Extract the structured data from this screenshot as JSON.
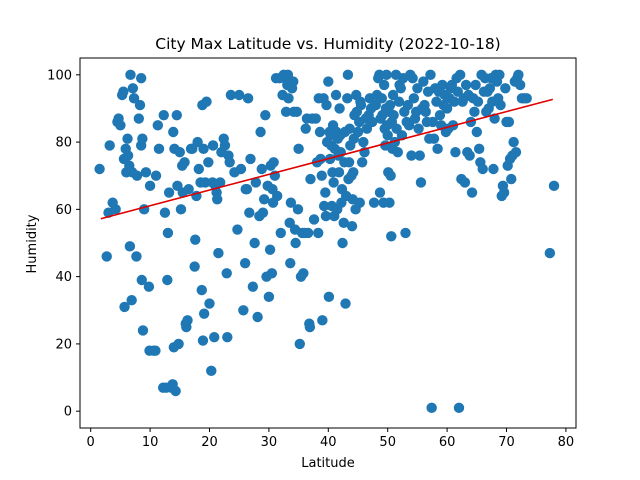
{
  "chart_data": {
    "type": "scatter",
    "title": "City Max Latitude vs. Humidity (2022-10-18)",
    "xlabel": "Latitude",
    "ylabel": "Humidity",
    "xlim": [
      -1.8,
      81.7
    ],
    "ylim": [
      -5,
      105
    ],
    "xticks": [
      "0",
      "10",
      "20",
      "30",
      "40",
      "50",
      "60",
      "70",
      "80"
    ],
    "yticks": [
      "0",
      "20",
      "40",
      "60",
      "80",
      "100"
    ],
    "grid": false,
    "colors": {
      "points": "#1f77b4",
      "regression": "#e00000"
    },
    "regression": {
      "x": [
        1.7,
        77.8
      ],
      "y": [
        57.2,
        92.7
      ]
    },
    "points": [
      [
        1.5,
        72
      ],
      [
        2.7,
        46
      ],
      [
        3.0,
        59
      ],
      [
        3.2,
        79
      ],
      [
        3.7,
        62
      ],
      [
        4.2,
        60
      ],
      [
        4.5,
        86
      ],
      [
        4.7,
        87
      ],
      [
        5.0,
        85
      ],
      [
        5.3,
        94
      ],
      [
        5.5,
        95
      ],
      [
        5.6,
        75
      ],
      [
        5.7,
        31
      ],
      [
        5.9,
        78
      ],
      [
        6.0,
        71
      ],
      [
        6.2,
        81
      ],
      [
        6.3,
        76
      ],
      [
        6.5,
        73
      ],
      [
        6.6,
        49
      ],
      [
        6.7,
        100
      ],
      [
        6.9,
        33
      ],
      [
        7.0,
        71
      ],
      [
        7.1,
        96
      ],
      [
        7.3,
        93
      ],
      [
        7.7,
        46
      ],
      [
        7.8,
        70
      ],
      [
        8.1,
        87
      ],
      [
        8.3,
        91
      ],
      [
        8.5,
        99
      ],
      [
        8.5,
        79
      ],
      [
        8.6,
        39
      ],
      [
        8.7,
        81
      ],
      [
        8.8,
        24
      ],
      [
        9.0,
        60
      ],
      [
        9.3,
        71
      ],
      [
        9.8,
        37
      ],
      [
        9.9,
        18
      ],
      [
        10.0,
        67
      ],
      [
        10.6,
        18
      ],
      [
        10.9,
        18
      ],
      [
        11.0,
        70
      ],
      [
        11.3,
        85
      ],
      [
        11.5,
        78
      ],
      [
        12.2,
        7
      ],
      [
        12.3,
        88
      ],
      [
        12.5,
        59
      ],
      [
        12.7,
        7
      ],
      [
        12.9,
        39
      ],
      [
        13.0,
        53
      ],
      [
        13.2,
        65
      ],
      [
        13.6,
        7
      ],
      [
        13.8,
        8
      ],
      [
        13.9,
        83
      ],
      [
        14.0,
        19
      ],
      [
        14.1,
        78
      ],
      [
        14.3,
        6
      ],
      [
        14.5,
        88
      ],
      [
        14.6,
        67
      ],
      [
        14.8,
        20
      ],
      [
        15.0,
        77
      ],
      [
        15.2,
        60
      ],
      [
        15.4,
        73
      ],
      [
        15.5,
        65
      ],
      [
        15.8,
        74
      ],
      [
        16.0,
        26
      ],
      [
        16.1,
        25
      ],
      [
        16.3,
        27
      ],
      [
        16.5,
        66
      ],
      [
        16.9,
        78
      ],
      [
        17.1,
        78
      ],
      [
        17.5,
        43
      ],
      [
        17.6,
        51
      ],
      [
        17.8,
        64
      ],
      [
        18.0,
        80
      ],
      [
        18.2,
        72
      ],
      [
        18.5,
        68
      ],
      [
        18.7,
        36
      ],
      [
        18.8,
        91
      ],
      [
        18.9,
        21
      ],
      [
        19.0,
        78
      ],
      [
        19.1,
        29
      ],
      [
        19.3,
        68
      ],
      [
        19.5,
        92
      ],
      [
        19.8,
        74
      ],
      [
        20.0,
        32
      ],
      [
        20.3,
        12
      ],
      [
        20.5,
        68
      ],
      [
        20.6,
        79
      ],
      [
        20.8,
        22
      ],
      [
        21.0,
        67
      ],
      [
        21.2,
        65
      ],
      [
        21.3,
        63
      ],
      [
        21.5,
        47
      ],
      [
        21.8,
        68
      ],
      [
        22.0,
        77
      ],
      [
        22.4,
        81
      ],
      [
        22.6,
        79
      ],
      [
        22.9,
        41
      ],
      [
        23.0,
        22
      ],
      [
        23.2,
        76
      ],
      [
        23.4,
        74
      ],
      [
        23.6,
        94
      ],
      [
        24.2,
        71
      ],
      [
        24.7,
        54
      ],
      [
        25.0,
        94
      ],
      [
        25.3,
        72
      ],
      [
        25.7,
        30
      ],
      [
        26.0,
        44
      ],
      [
        26.1,
        66
      ],
      [
        26.3,
        66
      ],
      [
        26.5,
        93
      ],
      [
        26.7,
        59
      ],
      [
        26.9,
        75
      ],
      [
        27.3,
        37
      ],
      [
        27.6,
        50
      ],
      [
        27.8,
        68
      ],
      [
        28.1,
        28
      ],
      [
        28.4,
        58
      ],
      [
        28.6,
        83
      ],
      [
        28.8,
        72
      ],
      [
        29.0,
        59
      ],
      [
        29.2,
        63
      ],
      [
        29.4,
        88
      ],
      [
        29.6,
        40
      ],
      [
        29.8,
        67
      ],
      [
        30.0,
        34
      ],
      [
        30.2,
        48
      ],
      [
        30.3,
        73
      ],
      [
        30.5,
        41
      ],
      [
        30.6,
        66
      ],
      [
        30.7,
        62
      ],
      [
        30.8,
        74
      ],
      [
        31.0,
        70
      ],
      [
        31.2,
        99
      ],
      [
        31.4,
        64
      ],
      [
        31.8,
        99
      ],
      [
        32.0,
        53
      ],
      [
        32.3,
        94
      ],
      [
        32.5,
        100
      ],
      [
        32.7,
        99
      ],
      [
        32.9,
        89
      ],
      [
        33.1,
        97
      ],
      [
        33.2,
        100
      ],
      [
        33.3,
        93
      ],
      [
        33.5,
        56
      ],
      [
        33.6,
        44
      ],
      [
        33.7,
        62
      ],
      [
        33.9,
        96
      ],
      [
        34.1,
        98
      ],
      [
        34.2,
        89
      ],
      [
        34.4,
        54
      ],
      [
        34.5,
        50
      ],
      [
        34.7,
        89
      ],
      [
        34.9,
        60
      ],
      [
        35.0,
        78
      ],
      [
        35.2,
        20
      ],
      [
        35.4,
        40
      ],
      [
        35.6,
        53
      ],
      [
        35.8,
        41
      ],
      [
        36.0,
        53
      ],
      [
        36.2,
        84
      ],
      [
        36.4,
        87
      ],
      [
        36.6,
        53
      ],
      [
        36.8,
        26
      ],
      [
        36.9,
        25
      ],
      [
        37.0,
        69
      ],
      [
        37.3,
        87
      ],
      [
        37.6,
        57
      ],
      [
        37.9,
        87
      ],
      [
        38.1,
        74
      ],
      [
        38.3,
        53
      ],
      [
        38.4,
        93
      ],
      [
        38.6,
        83
      ],
      [
        38.7,
        75
      ],
      [
        38.9,
        70
      ],
      [
        39.0,
        27
      ],
      [
        39.2,
        93
      ],
      [
        39.3,
        61
      ],
      [
        39.5,
        65
      ],
      [
        39.6,
        58
      ],
      [
        39.7,
        91
      ],
      [
        39.8,
        80
      ],
      [
        40.0,
        98
      ],
      [
        40.1,
        34
      ],
      [
        40.2,
        83
      ],
      [
        40.3,
        75
      ],
      [
        40.4,
        82
      ],
      [
        40.5,
        79
      ],
      [
        40.6,
        61
      ],
      [
        40.7,
        71
      ],
      [
        40.8,
        85
      ],
      [
        40.9,
        68
      ],
      [
        41.0,
        58
      ],
      [
        41.1,
        78
      ],
      [
        41.3,
        94
      ],
      [
        41.4,
        83
      ],
      [
        41.5,
        60
      ],
      [
        41.6,
        81
      ],
      [
        41.7,
        76
      ],
      [
        41.8,
        71
      ],
      [
        41.9,
        90
      ],
      [
        42.0,
        82
      ],
      [
        42.1,
        77
      ],
      [
        42.2,
        62
      ],
      [
        42.3,
        66
      ],
      [
        42.4,
        50
      ],
      [
        42.6,
        56
      ],
      [
        42.7,
        74
      ],
      [
        42.8,
        83
      ],
      [
        42.9,
        32
      ],
      [
        43.0,
        64
      ],
      [
        43.2,
        93
      ],
      [
        43.3,
        100
      ],
      [
        43.4,
        69
      ],
      [
        43.5,
        74
      ],
      [
        43.6,
        84
      ],
      [
        43.7,
        79
      ],
      [
        43.9,
        70
      ],
      [
        44.0,
        55
      ],
      [
        44.1,
        63
      ],
      [
        44.2,
        71
      ],
      [
        44.3,
        81
      ],
      [
        44.4,
        88
      ],
      [
        44.6,
        60
      ],
      [
        44.7,
        94
      ],
      [
        44.8,
        89
      ],
      [
        45.0,
        83
      ],
      [
        45.2,
        86
      ],
      [
        45.3,
        62
      ],
      [
        45.4,
        92
      ],
      [
        45.5,
        91
      ],
      [
        45.7,
        74
      ],
      [
        45.9,
        80
      ],
      [
        46.1,
        77
      ],
      [
        46.3,
        87
      ],
      [
        46.5,
        84
      ],
      [
        46.8,
        88
      ],
      [
        47.0,
        93
      ],
      [
        47.2,
        90
      ],
      [
        47.4,
        86
      ],
      [
        47.7,
        62
      ],
      [
        48.0,
        91
      ],
      [
        48.2,
        94
      ],
      [
        48.4,
        99
      ],
      [
        48.6,
        100
      ],
      [
        48.7,
        65
      ],
      [
        48.8,
        87
      ],
      [
        49.0,
        93
      ],
      [
        49.1,
        88
      ],
      [
        49.3,
        62
      ],
      [
        49.4,
        97
      ],
      [
        49.5,
        84
      ],
      [
        49.6,
        79
      ],
      [
        49.7,
        90
      ],
      [
        49.8,
        100
      ],
      [
        49.9,
        85
      ],
      [
        50.0,
        82
      ],
      [
        50.1,
        71
      ],
      [
        50.2,
        89
      ],
      [
        50.3,
        62
      ],
      [
        50.4,
        91
      ],
      [
        50.5,
        70
      ],
      [
        50.6,
        52
      ],
      [
        50.7,
        86
      ],
      [
        50.8,
        78
      ],
      [
        50.9,
        94
      ],
      [
        51.0,
        88
      ],
      [
        51.2,
        80
      ],
      [
        51.4,
        100
      ],
      [
        51.5,
        84
      ],
      [
        51.7,
        77
      ],
      [
        51.9,
        92
      ],
      [
        52.0,
        97
      ],
      [
        52.2,
        96
      ],
      [
        52.4,
        82
      ],
      [
        52.6,
        99
      ],
      [
        52.8,
        89
      ],
      [
        53.0,
        53
      ],
      [
        53.2,
        86
      ],
      [
        53.4,
        91
      ],
      [
        53.6,
        85
      ],
      [
        53.8,
        100
      ],
      [
        54.0,
        76
      ],
      [
        54.2,
        99
      ],
      [
        54.4,
        93
      ],
      [
        54.6,
        87
      ],
      [
        54.8,
        89
      ],
      [
        55.0,
        96
      ],
      [
        55.2,
        84
      ],
      [
        55.4,
        76
      ],
      [
        55.6,
        68
      ],
      [
        55.8,
        90
      ],
      [
        56.0,
        98
      ],
      [
        56.2,
        91
      ],
      [
        56.4,
        89
      ],
      [
        56.6,
        86
      ],
      [
        56.8,
        95
      ],
      [
        57.0,
        81
      ],
      [
        57.2,
        100
      ],
      [
        57.4,
        1
      ],
      [
        57.6,
        86
      ],
      [
        57.8,
        81
      ],
      [
        58.0,
        96
      ],
      [
        58.2,
        92
      ],
      [
        58.4,
        78
      ],
      [
        58.6,
        95
      ],
      [
        58.8,
        88
      ],
      [
        59.0,
        85
      ],
      [
        59.2,
        97
      ],
      [
        59.4,
        91
      ],
      [
        59.6,
        94
      ],
      [
        59.8,
        83
      ],
      [
        60.0,
        90
      ],
      [
        60.2,
        84
      ],
      [
        60.4,
        93
      ],
      [
        60.6,
        96
      ],
      [
        60.8,
        97
      ],
      [
        61.0,
        85
      ],
      [
        61.2,
        92
      ],
      [
        61.4,
        77
      ],
      [
        61.6,
        99
      ],
      [
        61.8,
        95
      ],
      [
        62.0,
        1
      ],
      [
        62.2,
        100
      ],
      [
        62.4,
        69
      ],
      [
        62.6,
        92
      ],
      [
        62.8,
        93
      ],
      [
        63.0,
        68
      ],
      [
        63.2,
        97
      ],
      [
        63.4,
        77
      ],
      [
        63.6,
        94
      ],
      [
        63.8,
        76
      ],
      [
        64.0,
        86
      ],
      [
        64.2,
        65
      ],
      [
        64.4,
        93
      ],
      [
        64.6,
        89
      ],
      [
        64.8,
        97
      ],
      [
        65.0,
        83
      ],
      [
        65.2,
        92
      ],
      [
        65.4,
        78
      ],
      [
        65.6,
        74
      ],
      [
        65.8,
        100
      ],
      [
        66.0,
        72
      ],
      [
        66.2,
        95
      ],
      [
        66.4,
        99
      ],
      [
        66.6,
        89
      ],
      [
        66.8,
        95
      ],
      [
        67.0,
        90
      ],
      [
        67.2,
        96
      ],
      [
        67.4,
        99
      ],
      [
        67.6,
        92
      ],
      [
        67.8,
        72
      ],
      [
        68.0,
        87
      ],
      [
        68.2,
        100
      ],
      [
        68.4,
        98
      ],
      [
        68.6,
        93
      ],
      [
        68.8,
        100
      ],
      [
        69.0,
        91
      ],
      [
        69.2,
        64
      ],
      [
        69.4,
        67
      ],
      [
        69.6,
        65
      ],
      [
        69.8,
        96
      ],
      [
        70.0,
        86
      ],
      [
        70.2,
        73
      ],
      [
        70.4,
        86
      ],
      [
        70.6,
        75
      ],
      [
        70.8,
        69
      ],
      [
        71.0,
        76
      ],
      [
        71.2,
        80
      ],
      [
        71.4,
        98
      ],
      [
        71.6,
        77
      ],
      [
        71.8,
        99
      ],
      [
        72.0,
        100
      ],
      [
        72.3,
        97
      ],
      [
        72.6,
        93
      ],
      [
        73.0,
        93
      ],
      [
        73.4,
        93
      ],
      [
        77.3,
        47
      ],
      [
        78.0,
        67
      ]
    ]
  }
}
